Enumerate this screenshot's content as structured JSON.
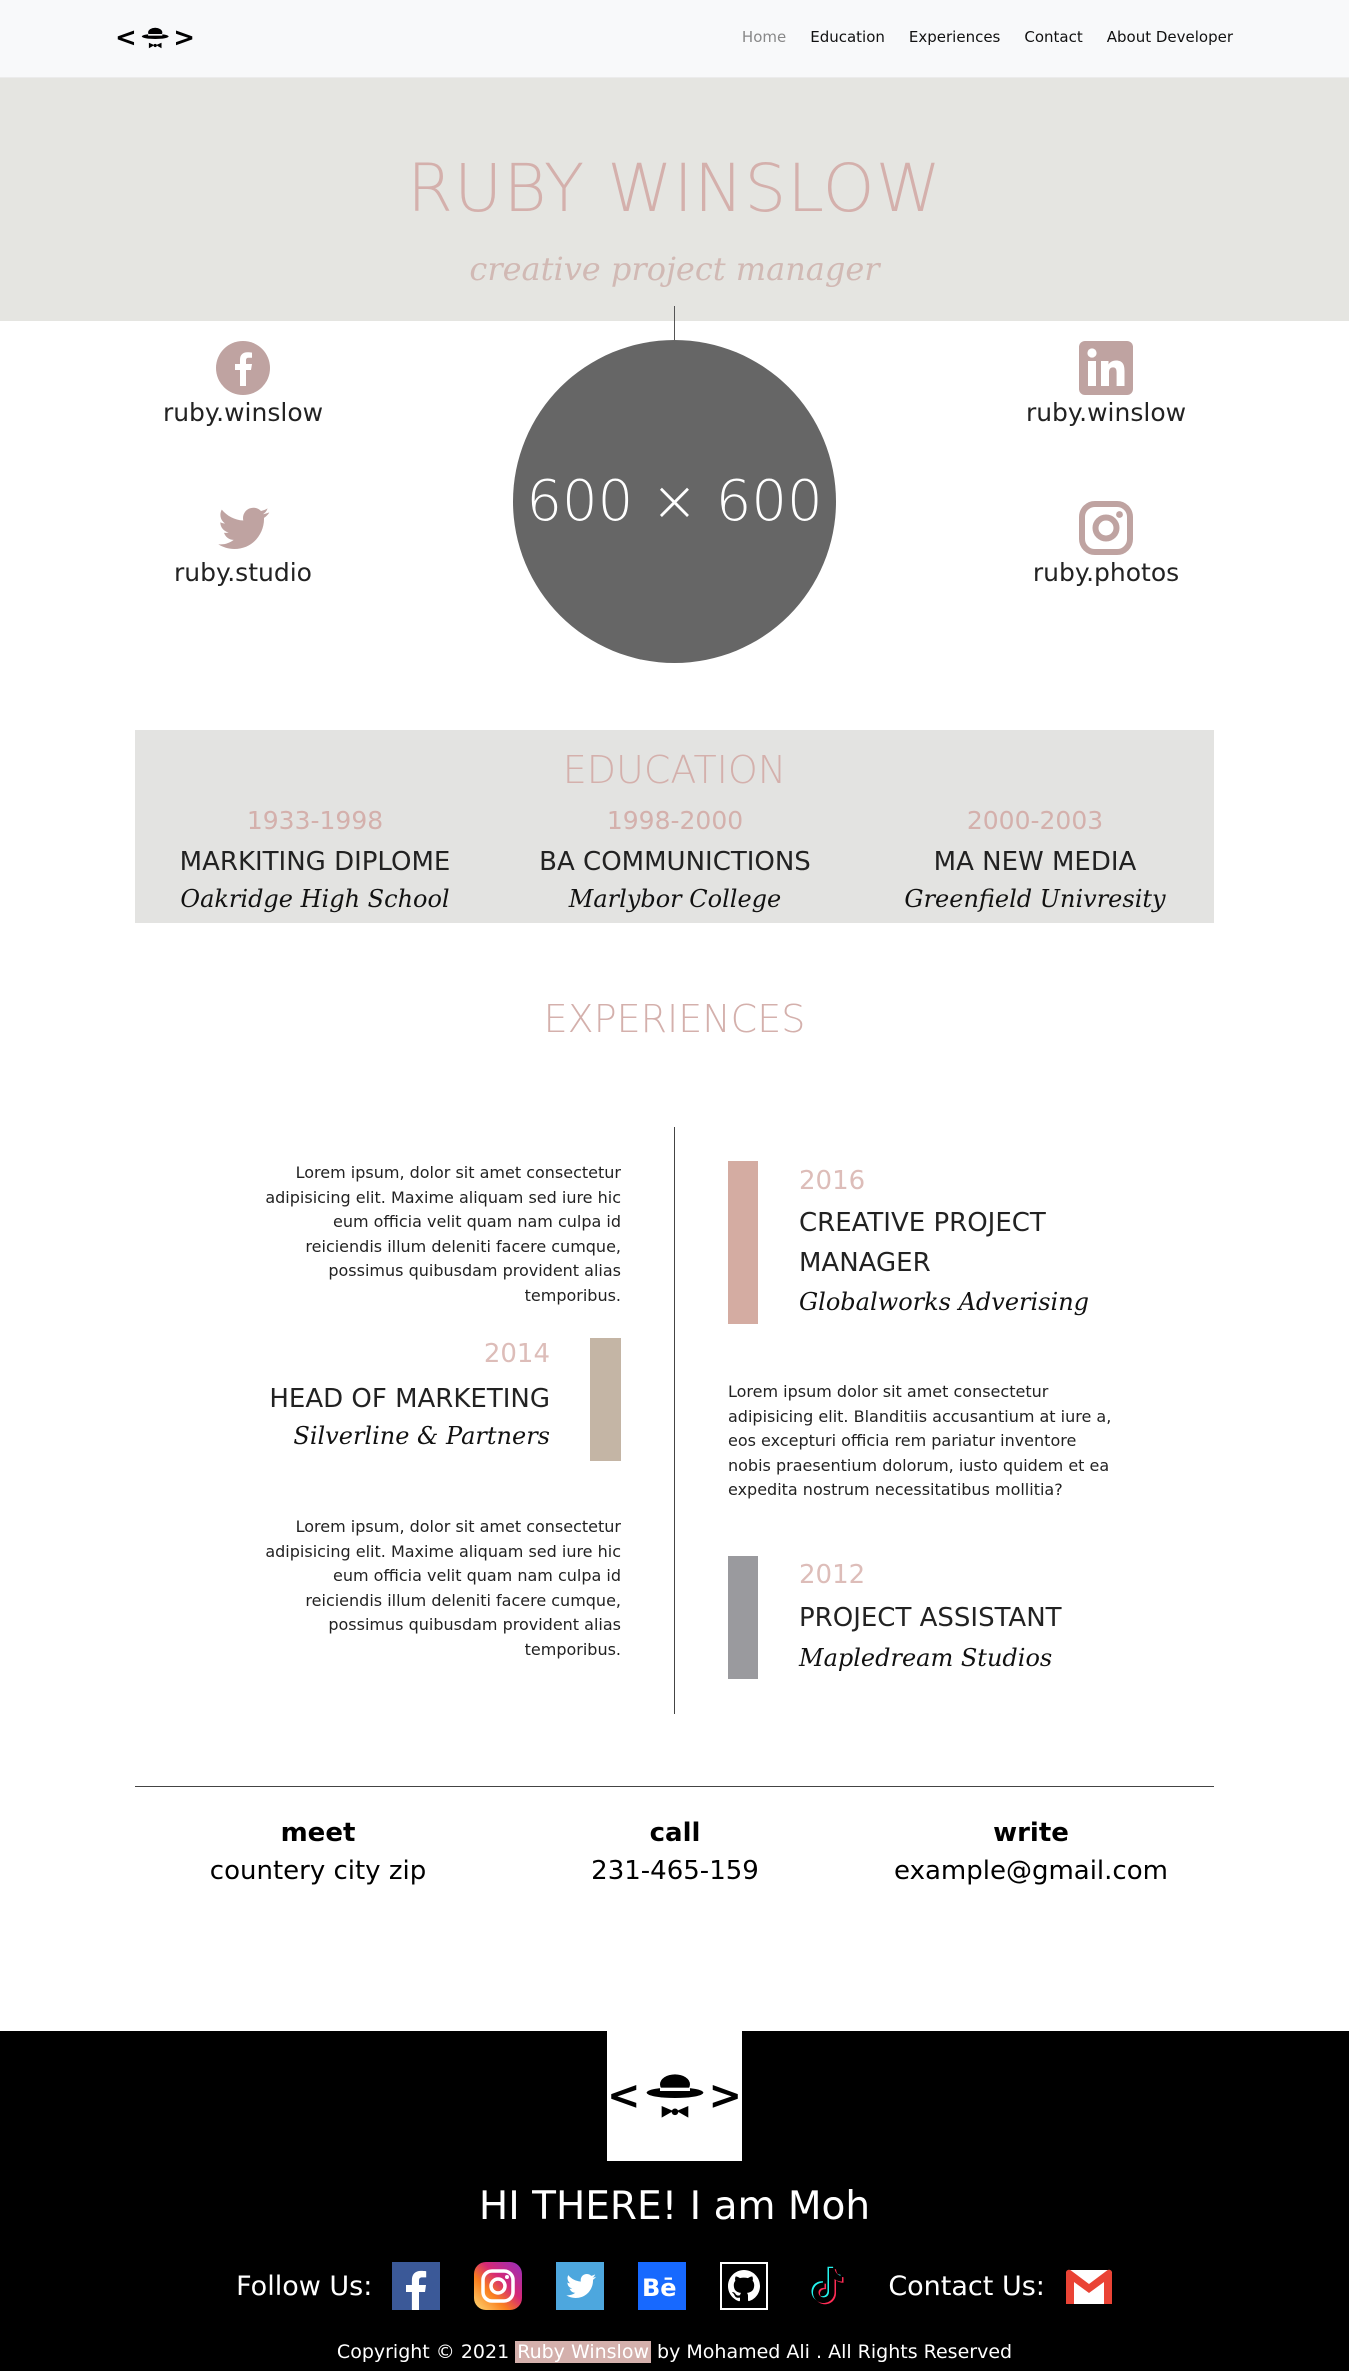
{
  "nav": {
    "brand_left": "<",
    "brand_right": ">",
    "items": [
      {
        "label": "Home",
        "active": true
      },
      {
        "label": "Education"
      },
      {
        "label": "Experiences"
      },
      {
        "label": "Contact"
      },
      {
        "label": "About Developer"
      }
    ]
  },
  "hero": {
    "name": "RUBY WINSLOW",
    "role": "creative project manager"
  },
  "profile": {
    "avatar_text": "600 × 600",
    "avatar_color": "#666666",
    "socials": {
      "facebook": {
        "icon": "facebook-icon",
        "label": "ruby.winslow"
      },
      "twitter": {
        "icon": "twitter-icon",
        "label": "ruby.studio"
      },
      "linkedin": {
        "icon": "linkedin-icon",
        "label": "ruby.winslow"
      },
      "instagram": {
        "icon": "instagram-icon",
        "label": "ruby.photos"
      }
    },
    "icon_color": "#bfa3a1"
  },
  "education": {
    "title": "EDUCATION",
    "items": [
      {
        "years": "1933-1998",
        "degree": "MARKITING DIPLOME",
        "school": "Oakridge High School"
      },
      {
        "years": "1998-2000",
        "degree": "BA COMMUNICTIONS",
        "school": "Marlybor College"
      },
      {
        "years": "2000-2003",
        "degree": "MA NEW MEDIA",
        "school": "Greenfield Univresity"
      }
    ]
  },
  "experiences": {
    "title": "EXPERIENCES",
    "lorem_left_1": "Lorem ipsum, dolor sit amet consectetur adipisicing elit. Maxime aliquam sed iure hic eum officia velit quam nam culpa id reiciendis illum deleniti facere cumque, possimus quibusdam provident alias temporibus.",
    "lorem_left_2": "Lorem ipsum, dolor sit amet consectetur adipisicing elit. Maxime aliquam sed iure hic eum officia velit quam nam culpa id reiciendis illum deleniti facere cumque, possimus quibusdam provident alias temporibus.",
    "lorem_right": "Lorem ipsum dolor sit amet consectetur adipisicing elit. Blanditiis accusantium at iure a, eos excepturi officia rem pariatur inventore nobis praesentium dolorum, iusto quidem et ea expedita nostrum necessitatibus mollitia?",
    "items": [
      {
        "year": "2016",
        "role": "CREATIVE PROJECT MANAGER",
        "company": "Globalworks Adverising",
        "color": "#d4aca2"
      },
      {
        "year": "2014",
        "role": "HEAD OF MARKETING",
        "company": "Silverline & Partners",
        "color": "#c4b5a5"
      },
      {
        "year": "2012",
        "role": "PROJECT ASSISTANT",
        "company": "Mapledream Studios",
        "color": "#9a9a9e"
      }
    ]
  },
  "contact": {
    "meet": {
      "label": "meet",
      "value": "countery city zip"
    },
    "call": {
      "label": "call",
      "value": "231-465-159"
    },
    "write": {
      "label": "write",
      "value": "example@gmail.com"
    }
  },
  "footer": {
    "greeting": "HI THERE! I am Moh",
    "follow_label": "Follow Us:",
    "contact_label": "Contact Us:",
    "icons": [
      "facebook-icon",
      "instagram-icon",
      "twitter-icon",
      "behance-icon",
      "github-icon",
      "tiktok-icon",
      "gmail-icon"
    ],
    "copyright_pre": "Copyright © 2021 ",
    "copyright_name": "Ruby Winslow",
    "copyright_post": " by Mohamed Ali . All Rights Reserved"
  }
}
